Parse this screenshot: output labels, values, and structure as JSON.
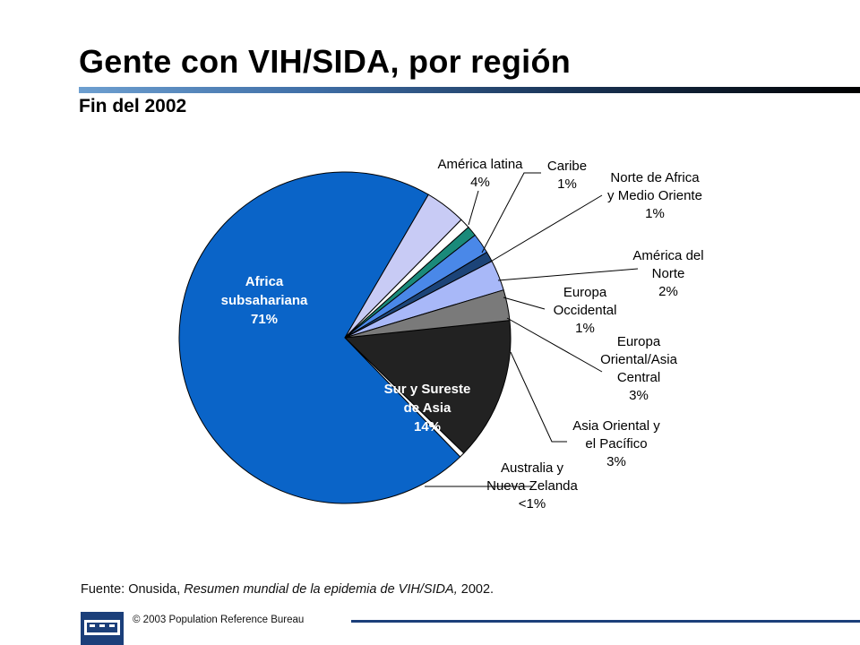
{
  "title": "Gente con VIH/SIDA, por región",
  "subtitle": "Fin del 2002",
  "source": {
    "prefix": "Fuente: Onusida, ",
    "italic": "Resumen mundial de la epidemia de VIH/SIDA,",
    "suffix": " 2002."
  },
  "footer": {
    "logo_text": "PRB",
    "copyright": "© 2003  Population Reference Bureau"
  },
  "chart_data": {
    "type": "pie",
    "title": "",
    "slices": [
      {
        "label": "Sur y Sureste de Asia",
        "value": 14,
        "display": "14%",
        "color": "#222222",
        "label_lines": [
          "Sur y Sureste",
          "de Asia",
          "14%"
        ],
        "label_color": "#ffffff"
      },
      {
        "label": "Australia y Nueva Zelanda",
        "value": 0.5,
        "display": "<1%",
        "color": "#ffffff",
        "label_lines": [
          "Australia y",
          "Nueva Zelanda",
          "<1%"
        ]
      },
      {
        "label": "Africa subsahariana",
        "value": 71,
        "display": "71%",
        "color": "#0a64c8",
        "label_lines": [
          "Africa",
          "subsahariana",
          "71%"
        ],
        "label_color": "#ffffff"
      },
      {
        "label": "América latina",
        "value": 4,
        "display": "4%",
        "color": "#c8cbf5",
        "label_lines": [
          "América latina",
          "4%"
        ]
      },
      {
        "label": "Caribe",
        "value": 1,
        "display": "1%",
        "color": "#ffffff",
        "label_lines": [
          "Caribe",
          "1%"
        ]
      },
      {
        "label": "Norte de Africa y Medio Oriente",
        "value": 1,
        "display": "1%",
        "color": "#1a8a7a",
        "label_lines": [
          "Norte de Africa",
          "y Medio Oriente",
          "1%"
        ]
      },
      {
        "label": "América del Norte",
        "value": 2,
        "display": "2%",
        "color": "#4a88e8",
        "label_lines": [
          "América del",
          "Norte",
          "2%"
        ]
      },
      {
        "label": "Europa Occidental",
        "value": 1,
        "display": "1%",
        "color": "#1c4478",
        "label_lines": [
          "Europa",
          "Occidental",
          "1%"
        ]
      },
      {
        "label": "Europa Oriental/Asia Central",
        "value": 3,
        "display": "3%",
        "color": "#a8b8f8",
        "label_lines": [
          "Europa",
          "Oriental/Asia",
          "Central",
          "3%"
        ]
      },
      {
        "label": "Asia Oriental y el Pacífico",
        "value": 3,
        "display": "3%",
        "color": "#7a7a7a",
        "label_lines": [
          "Asia Oriental y",
          "el Pacífico",
          "3%"
        ]
      }
    ],
    "legend": "callout labels"
  }
}
